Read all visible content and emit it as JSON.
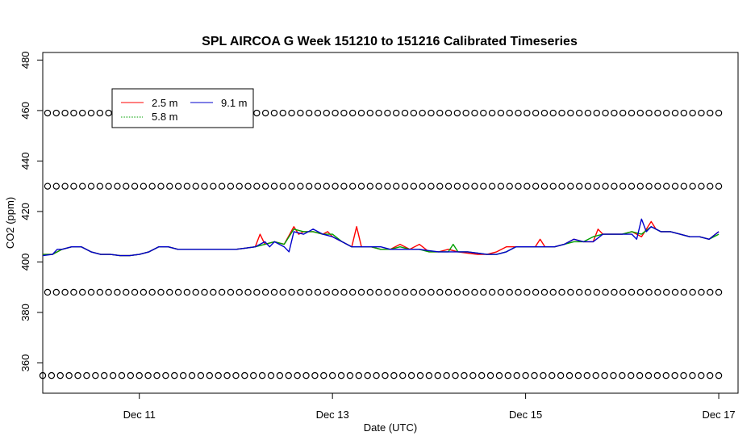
{
  "chart_data": {
    "type": "line",
    "title": "SPL AIRCOA G  Week 151210 to 151216  Calibrated Timeseries",
    "xlabel": "Date (UTC)",
    "ylabel": "CO2 (ppm)",
    "xlim": [
      0,
      7.2
    ],
    "ylim": [
      348,
      483
    ],
    "x_ticks": [
      {
        "x": 1,
        "label": "Dec 11"
      },
      {
        "x": 3,
        "label": "Dec 13"
      },
      {
        "x": 5,
        "label": "Dec 15"
      },
      {
        "x": 7,
        "label": "Dec 17"
      }
    ],
    "y_ticks": [
      {
        "y": 360,
        "label": "360"
      },
      {
        "y": 380,
        "label": "380"
      },
      {
        "y": 400,
        "label": "400"
      },
      {
        "y": 420,
        "label": "420"
      },
      {
        "y": 440,
        "label": "440"
      },
      {
        "y": 460,
        "label": "460"
      },
      {
        "y": 480,
        "label": "480"
      }
    ],
    "grid": false,
    "legend": {
      "position": "top-left",
      "entries": [
        {
          "name": "2.5 m",
          "color": "#ff0000"
        },
        {
          "name": "5.8 m",
          "color": "#00a000"
        },
        {
          "name": "9.1 m",
          "color": "#0000cc"
        }
      ]
    },
    "series": [
      {
        "name": "2.5 m",
        "color": "#ff0000",
        "x": [
          0.0,
          0.1,
          0.2,
          0.3,
          0.4,
          0.5,
          0.6,
          0.7,
          0.8,
          0.9,
          1.0,
          1.1,
          1.2,
          1.3,
          1.4,
          1.5,
          1.6,
          1.7,
          1.8,
          1.9,
          2.0,
          2.1,
          2.2,
          2.25,
          2.3,
          2.4,
          2.5,
          2.6,
          2.65,
          2.7,
          2.8,
          2.9,
          2.95,
          3.0,
          3.1,
          3.2,
          3.25,
          3.3,
          3.4,
          3.5,
          3.6,
          3.7,
          3.8,
          3.9,
          4.0,
          4.1,
          4.2,
          4.3,
          4.4,
          4.5,
          4.6,
          4.7,
          4.8,
          4.9,
          5.0,
          5.1,
          5.15,
          5.2,
          5.3,
          5.4,
          5.5,
          5.6,
          5.7,
          5.75,
          5.8,
          5.9,
          6.0,
          6.1,
          6.2,
          6.3,
          6.35,
          6.4,
          6.5,
          6.6,
          6.7,
          6.8,
          6.9,
          7.0
        ],
        "y": [
          403,
          403,
          405,
          406,
          406,
          404,
          403,
          403,
          402.5,
          402.5,
          403,
          404,
          406,
          406,
          405,
          405,
          405,
          405,
          405,
          405,
          405,
          405.5,
          406,
          411,
          407,
          408,
          407,
          414,
          411,
          412,
          412,
          411,
          412,
          410,
          408,
          406,
          414,
          406,
          406,
          405,
          405,
          407,
          405,
          407,
          404,
          404,
          405,
          404,
          403.5,
          403,
          403,
          404,
          406,
          406,
          406,
          406,
          409,
          406,
          406,
          407,
          409,
          408,
          408,
          413,
          411,
          411,
          411,
          412,
          410,
          416,
          413,
          412,
          412,
          411,
          410,
          410,
          409,
          412
        ]
      },
      {
        "name": "5.8 m",
        "color": "#00a000",
        "x": [
          0.0,
          0.1,
          0.2,
          0.3,
          0.4,
          0.5,
          0.6,
          0.7,
          0.8,
          0.9,
          1.0,
          1.1,
          1.2,
          1.3,
          1.4,
          1.5,
          1.6,
          1.7,
          1.8,
          1.9,
          2.0,
          2.1,
          2.2,
          2.3,
          2.4,
          2.5,
          2.6,
          2.7,
          2.8,
          2.9,
          3.0,
          3.1,
          3.2,
          3.3,
          3.4,
          3.5,
          3.6,
          3.7,
          3.8,
          3.9,
          4.0,
          4.1,
          4.2,
          4.25,
          4.3,
          4.4,
          4.5,
          4.6,
          4.7,
          4.8,
          4.9,
          5.0,
          5.1,
          5.2,
          5.3,
          5.4,
          5.5,
          5.6,
          5.7,
          5.8,
          5.9,
          6.0,
          6.1,
          6.2,
          6.3,
          6.4,
          6.5,
          6.6,
          6.7,
          6.8,
          6.9,
          7.0
        ],
        "y": [
          403,
          403,
          405,
          406,
          406,
          404,
          403,
          403,
          402.5,
          402.5,
          403,
          404,
          406,
          406,
          405,
          405,
          405,
          405,
          405,
          405,
          405,
          405.5,
          406,
          407,
          408,
          407,
          413,
          412,
          412,
          411,
          411,
          408,
          406,
          406,
          406,
          405,
          405,
          406,
          405,
          405,
          404,
          404,
          404,
          407,
          404,
          404,
          403.5,
          403,
          403,
          404,
          406,
          406,
          406,
          406,
          406,
          407,
          408,
          408,
          410,
          411,
          411,
          411,
          412,
          411,
          414,
          412,
          412,
          411,
          410,
          410,
          409,
          411
        ]
      },
      {
        "name": "9.1 m",
        "color": "#0000cc",
        "x": [
          0.0,
          0.1,
          0.15,
          0.2,
          0.3,
          0.4,
          0.5,
          0.6,
          0.7,
          0.8,
          0.9,
          1.0,
          1.1,
          1.2,
          1.3,
          1.4,
          1.5,
          1.6,
          1.7,
          1.8,
          1.9,
          2.0,
          2.1,
          2.2,
          2.3,
          2.35,
          2.4,
          2.5,
          2.55,
          2.6,
          2.7,
          2.8,
          2.9,
          3.0,
          3.1,
          3.2,
          3.3,
          3.4,
          3.5,
          3.6,
          3.7,
          3.8,
          3.9,
          4.0,
          4.1,
          4.2,
          4.3,
          4.4,
          4.5,
          4.6,
          4.7,
          4.8,
          4.9,
          5.0,
          5.1,
          5.2,
          5.3,
          5.4,
          5.5,
          5.6,
          5.7,
          5.8,
          5.9,
          6.0,
          6.1,
          6.15,
          6.2,
          6.25,
          6.3,
          6.4,
          6.5,
          6.6,
          6.7,
          6.8,
          6.9,
          7.0
        ],
        "y": [
          402.5,
          403,
          405,
          405,
          406,
          406,
          404,
          403,
          403,
          402.5,
          402.5,
          403,
          404,
          406,
          406,
          405,
          405,
          405,
          405,
          405,
          405,
          405,
          405.5,
          406,
          408,
          406,
          408,
          406,
          404,
          412,
          411,
          413,
          411,
          410,
          408,
          406,
          406,
          406,
          406,
          405,
          405,
          405,
          405,
          404.5,
          404,
          404,
          404,
          404,
          403.5,
          403,
          403,
          404,
          406,
          406,
          406,
          406,
          406,
          407,
          409,
          408,
          408,
          411,
          411,
          411,
          411,
          409,
          417,
          412,
          414,
          412,
          412,
          411,
          410,
          410,
          409,
          412
        ]
      },
      {
        "name": "",
        "kind": "points",
        "color": "#000000",
        "level": 459,
        "x_start": 0.05,
        "x_end": 7.0,
        "count": 78
      },
      {
        "name": "",
        "kind": "points",
        "color": "#000000",
        "level": 430,
        "x_start": 0.05,
        "x_end": 7.0,
        "count": 78
      },
      {
        "name": "",
        "kind": "points",
        "color": "#000000",
        "level": 388,
        "x_start": 0.05,
        "x_end": 7.0,
        "count": 78
      },
      {
        "name": "",
        "kind": "points",
        "color": "#000000",
        "level": 355,
        "x_start": 0.0,
        "x_end": 7.0,
        "count": 78
      }
    ]
  }
}
